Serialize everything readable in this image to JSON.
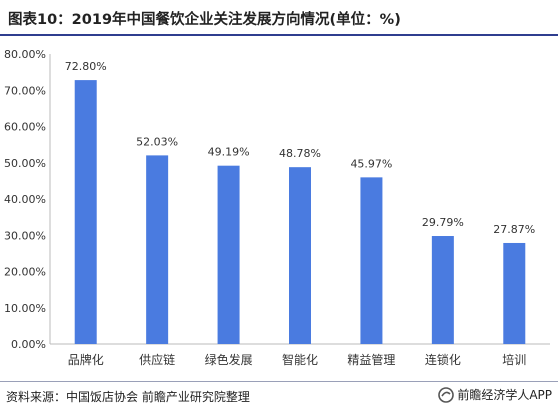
{
  "header": {
    "title": "图表10：2019年中国餐饮企业关注发展方向情况(单位：%)"
  },
  "footer": {
    "source": "资料来源：中国饭店协会 前瞻产业研究院整理",
    "brand": "前瞻经济学人APP"
  },
  "colors": {
    "bar": "#4a7be0",
    "accent_rule": "#2f3e8f"
  },
  "icons": {
    "brand_logo": "qianzhan-logo-icon"
  },
  "chart_data": {
    "type": "bar",
    "categories": [
      "品牌化",
      "供应链",
      "绿色发展",
      "智能化",
      "精益管理",
      "连锁化",
      "培训"
    ],
    "values": [
      72.8,
      52.03,
      49.19,
      48.78,
      45.97,
      29.79,
      27.87
    ],
    "value_labels": [
      "72.80%",
      "52.03%",
      "49.19%",
      "48.78%",
      "45.97%",
      "29.79%",
      "27.87%"
    ],
    "y_ticks": [
      0,
      10,
      20,
      30,
      40,
      50,
      60,
      70,
      80
    ],
    "y_tick_labels": [
      "0.00%",
      "10.00%",
      "20.00%",
      "30.00%",
      "40.00%",
      "50.00%",
      "60.00%",
      "70.00%",
      "80.00%"
    ],
    "ylim": [
      0,
      80
    ],
    "grid": false,
    "title": "",
    "xlabel": "",
    "ylabel": ""
  }
}
